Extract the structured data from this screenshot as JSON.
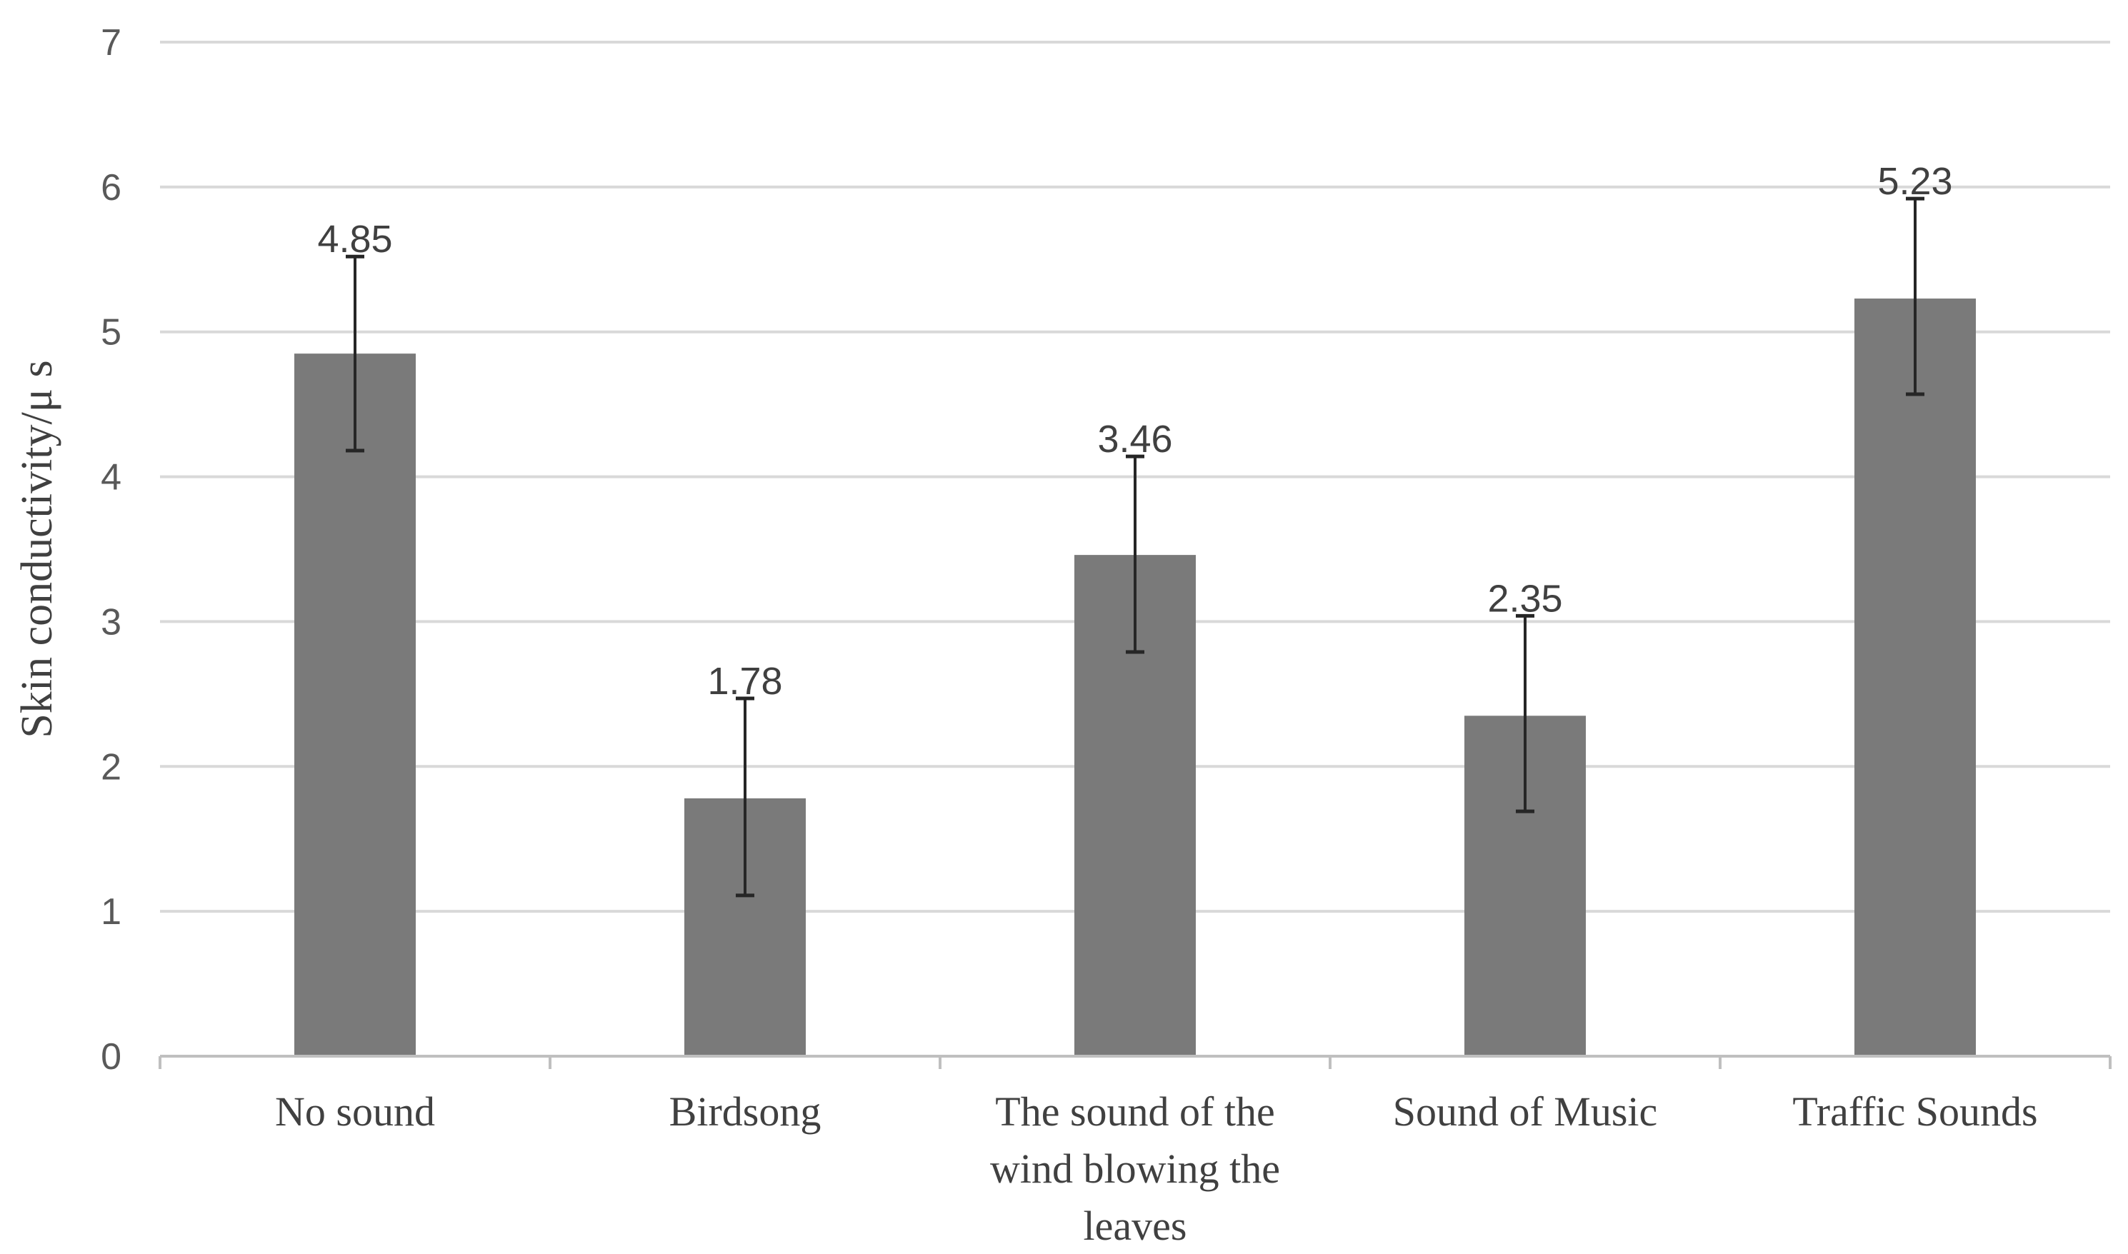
{
  "chart_data": {
    "type": "bar",
    "title": "",
    "xlabel": "",
    "ylabel": "Skin conductivity/μ s",
    "categories": [
      [
        "No sound"
      ],
      [
        "Birdsong"
      ],
      [
        "The sound of the",
        "wind blowing the",
        "leaves"
      ],
      [
        "Sound of Music"
      ],
      [
        "Traffic Sounds"
      ]
    ],
    "values": [
      4.85,
      1.78,
      3.46,
      2.35,
      5.23
    ],
    "value_labels": [
      "4.85",
      "1.78",
      "3.46",
      "2.35",
      "5.23"
    ],
    "error_upper": [
      5.52,
      2.47,
      4.14,
      3.04,
      5.92
    ],
    "error_lower": [
      4.18,
      1.11,
      2.79,
      1.69,
      4.57
    ],
    "ylim": [
      0,
      7
    ],
    "yticks": [
      "0",
      "1",
      "2",
      "3",
      "4",
      "5",
      "6",
      "7"
    ],
    "grid": true,
    "legend": "none",
    "colors": {
      "bar": "#7a7a7a",
      "grid": "#d9d9d9",
      "axis": "#bfbfbf",
      "tick_text": "#595959",
      "label_text": "#404040",
      "error_bar": "#262626"
    }
  }
}
